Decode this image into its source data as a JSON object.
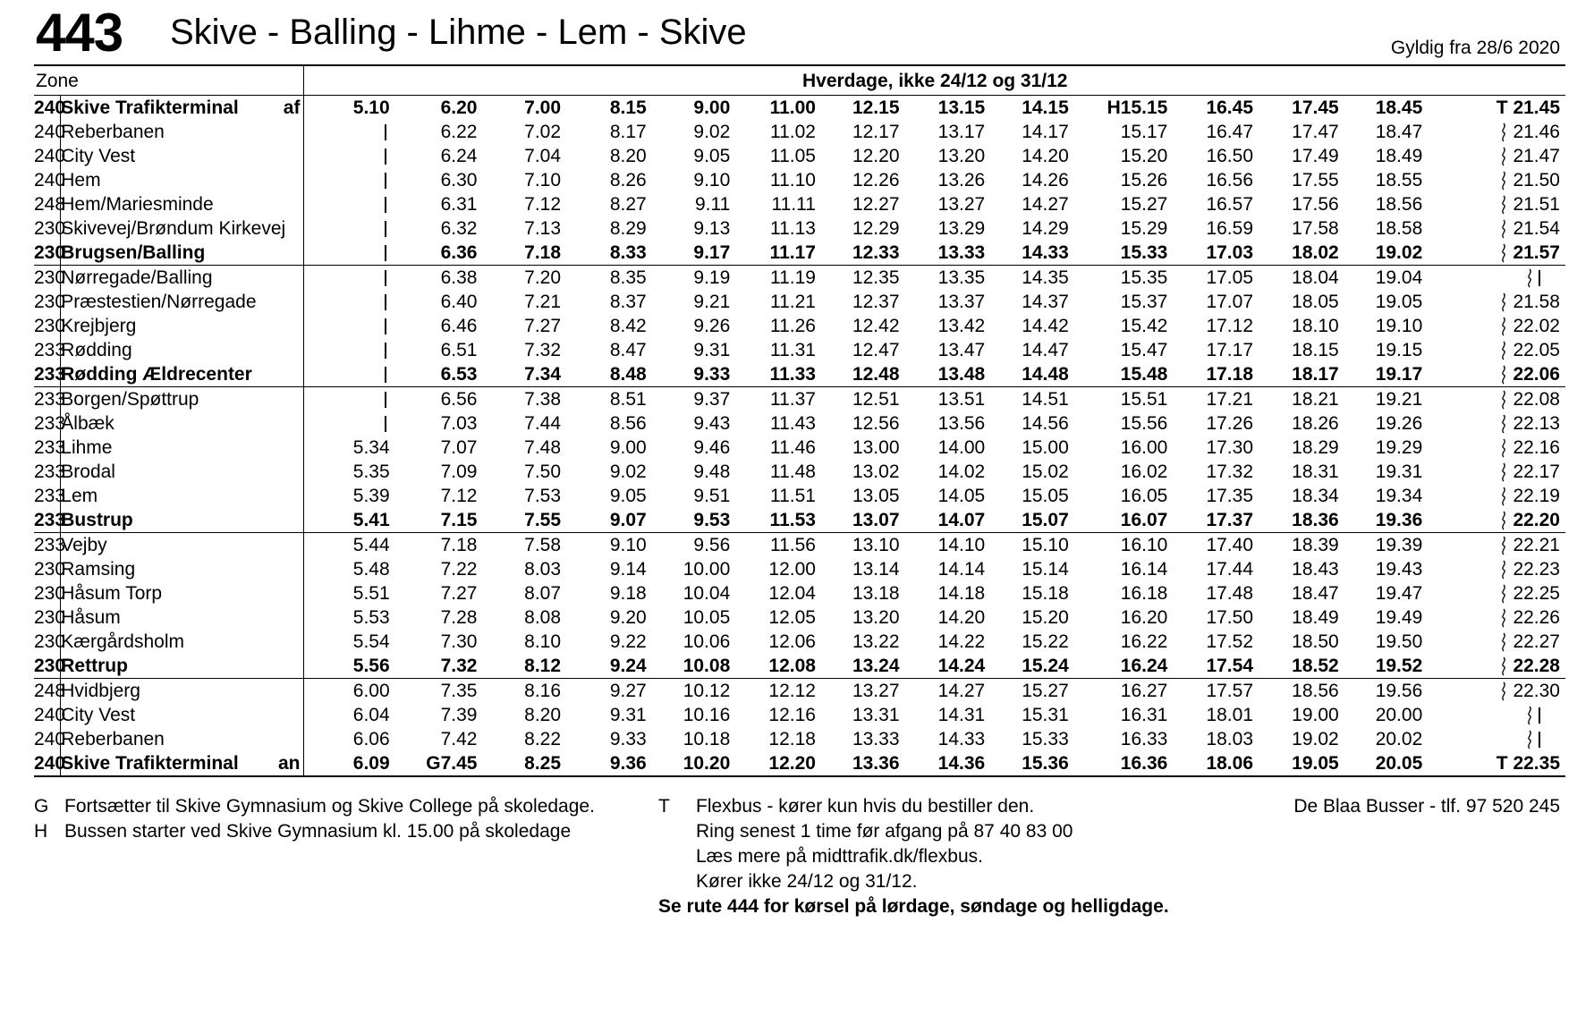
{
  "header": {
    "route_number": "443",
    "route_name": "Skive - Balling - Lihme - Lem - Skive",
    "valid_from": "Gyldig fra 28/6 2020"
  },
  "table": {
    "zone_header": "Zone",
    "day_header": "Hverdage, ikke 24/12 og 31/12",
    "rows": [
      {
        "zone": "240",
        "stop": "Skive Trafikterminal",
        "mark": "af",
        "bold": true,
        "sep": false,
        "times": [
          "5.10",
          "6.20",
          "7.00",
          "8.15",
          "9.00",
          "11.00",
          "12.15",
          "13.15",
          "14.15",
          "H15.15",
          "16.45",
          "17.45",
          "18.45",
          "T 21.45"
        ]
      },
      {
        "zone": "240",
        "stop": "Reberbanen",
        "mark": "",
        "bold": false,
        "sep": false,
        "times": [
          "|",
          "6.22",
          "7.02",
          "8.17",
          "9.02",
          "11.02",
          "12.17",
          "13.17",
          "14.17",
          "15.17",
          "16.47",
          "17.47",
          "18.47",
          "~21.46"
        ]
      },
      {
        "zone": "240",
        "stop": "City Vest",
        "mark": "",
        "bold": false,
        "sep": false,
        "times": [
          "|",
          "6.24",
          "7.04",
          "8.20",
          "9.05",
          "11.05",
          "12.20",
          "13.20",
          "14.20",
          "15.20",
          "16.50",
          "17.49",
          "18.49",
          "~21.47"
        ]
      },
      {
        "zone": "240",
        "stop": "Hem",
        "mark": "",
        "bold": false,
        "sep": false,
        "times": [
          "|",
          "6.30",
          "7.10",
          "8.26",
          "9.10",
          "11.10",
          "12.26",
          "13.26",
          "14.26",
          "15.26",
          "16.56",
          "17.55",
          "18.55",
          "~21.50"
        ]
      },
      {
        "zone": "248",
        "stop": "Hem/Mariesminde",
        "mark": "",
        "bold": false,
        "sep": false,
        "times": [
          "|",
          "6.31",
          "7.12",
          "8.27",
          "9.11",
          "11.11",
          "12.27",
          "13.27",
          "14.27",
          "15.27",
          "16.57",
          "17.56",
          "18.56",
          "~21.51"
        ]
      },
      {
        "zone": "230",
        "stop": "Skivevej/Brøndum Kirkevej",
        "mark": "",
        "bold": false,
        "sep": false,
        "times": [
          "|",
          "6.32",
          "7.13",
          "8.29",
          "9.13",
          "11.13",
          "12.29",
          "13.29",
          "14.29",
          "15.29",
          "16.59",
          "17.58",
          "18.58",
          "~21.54"
        ]
      },
      {
        "zone": "230",
        "stop": "Brugsen/Balling",
        "mark": "",
        "bold": true,
        "sep": true,
        "times": [
          "|",
          "6.36",
          "7.18",
          "8.33",
          "9.17",
          "11.17",
          "12.33",
          "13.33",
          "14.33",
          "15.33",
          "17.03",
          "18.02",
          "19.02",
          "~21.57"
        ]
      },
      {
        "zone": "230",
        "stop": "Nørregade/Balling",
        "mark": "",
        "bold": false,
        "sep": false,
        "times": [
          "|",
          "6.38",
          "7.20",
          "8.35",
          "9.19",
          "11.19",
          "12.35",
          "13.35",
          "14.35",
          "15.35",
          "17.05",
          "18.04",
          "19.04",
          "~|"
        ]
      },
      {
        "zone": "230",
        "stop": "Præstestien/Nørregade",
        "mark": "",
        "bold": false,
        "sep": false,
        "times": [
          "|",
          "6.40",
          "7.21",
          "8.37",
          "9.21",
          "11.21",
          "12.37",
          "13.37",
          "14.37",
          "15.37",
          "17.07",
          "18.05",
          "19.05",
          "~21.58"
        ]
      },
      {
        "zone": "230",
        "stop": "Krejbjerg",
        "mark": "",
        "bold": false,
        "sep": false,
        "times": [
          "|",
          "6.46",
          "7.27",
          "8.42",
          "9.26",
          "11.26",
          "12.42",
          "13.42",
          "14.42",
          "15.42",
          "17.12",
          "18.10",
          "19.10",
          "~22.02"
        ]
      },
      {
        "zone": "233",
        "stop": "Rødding",
        "mark": "",
        "bold": false,
        "sep": false,
        "times": [
          "|",
          "6.51",
          "7.32",
          "8.47",
          "9.31",
          "11.31",
          "12.47",
          "13.47",
          "14.47",
          "15.47",
          "17.17",
          "18.15",
          "19.15",
          "~22.05"
        ]
      },
      {
        "zone": "233",
        "stop": "Rødding Ældrecenter",
        "mark": "",
        "bold": true,
        "sep": true,
        "times": [
          "|",
          "6.53",
          "7.34",
          "8.48",
          "9.33",
          "11.33",
          "12.48",
          "13.48",
          "14.48",
          "15.48",
          "17.18",
          "18.17",
          "19.17",
          "~22.06"
        ]
      },
      {
        "zone": "233",
        "stop": "Borgen/Spøttrup",
        "mark": "",
        "bold": false,
        "sep": false,
        "times": [
          "|",
          "6.56",
          "7.38",
          "8.51",
          "9.37",
          "11.37",
          "12.51",
          "13.51",
          "14.51",
          "15.51",
          "17.21",
          "18.21",
          "19.21",
          "~22.08"
        ]
      },
      {
        "zone": "233",
        "stop": "Ålbæk",
        "mark": "",
        "bold": false,
        "sep": false,
        "times": [
          "|",
          "7.03",
          "7.44",
          "8.56",
          "9.43",
          "11.43",
          "12.56",
          "13.56",
          "14.56",
          "15.56",
          "17.26",
          "18.26",
          "19.26",
          "~22.13"
        ]
      },
      {
        "zone": "233",
        "stop": "Lihme",
        "mark": "",
        "bold": false,
        "sep": false,
        "times": [
          "5.34",
          "7.07",
          "7.48",
          "9.00",
          "9.46",
          "11.46",
          "13.00",
          "14.00",
          "15.00",
          "16.00",
          "17.30",
          "18.29",
          "19.29",
          "~22.16"
        ]
      },
      {
        "zone": "233",
        "stop": "Brodal",
        "mark": "",
        "bold": false,
        "sep": false,
        "times": [
          "5.35",
          "7.09",
          "7.50",
          "9.02",
          "9.48",
          "11.48",
          "13.02",
          "14.02",
          "15.02",
          "16.02",
          "17.32",
          "18.31",
          "19.31",
          "~22.17"
        ]
      },
      {
        "zone": "233",
        "stop": "Lem",
        "mark": "",
        "bold": false,
        "sep": false,
        "times": [
          "5.39",
          "7.12",
          "7.53",
          "9.05",
          "9.51",
          "11.51",
          "13.05",
          "14.05",
          "15.05",
          "16.05",
          "17.35",
          "18.34",
          "19.34",
          "~22.19"
        ]
      },
      {
        "zone": "233",
        "stop": "Bustrup",
        "mark": "",
        "bold": true,
        "sep": true,
        "times": [
          "5.41",
          "7.15",
          "7.55",
          "9.07",
          "9.53",
          "11.53",
          "13.07",
          "14.07",
          "15.07",
          "16.07",
          "17.37",
          "18.36",
          "19.36",
          "~22.20"
        ]
      },
      {
        "zone": "233",
        "stop": "Vejby",
        "mark": "",
        "bold": false,
        "sep": false,
        "times": [
          "5.44",
          "7.18",
          "7.58",
          "9.10",
          "9.56",
          "11.56",
          "13.10",
          "14.10",
          "15.10",
          "16.10",
          "17.40",
          "18.39",
          "19.39",
          "~22.21"
        ]
      },
      {
        "zone": "230",
        "stop": "Ramsing",
        "mark": "",
        "bold": false,
        "sep": false,
        "times": [
          "5.48",
          "7.22",
          "8.03",
          "9.14",
          "10.00",
          "12.00",
          "13.14",
          "14.14",
          "15.14",
          "16.14",
          "17.44",
          "18.43",
          "19.43",
          "~22.23"
        ]
      },
      {
        "zone": "230",
        "stop": "Håsum Torp",
        "mark": "",
        "bold": false,
        "sep": false,
        "times": [
          "5.51",
          "7.27",
          "8.07",
          "9.18",
          "10.04",
          "12.04",
          "13.18",
          "14.18",
          "15.18",
          "16.18",
          "17.48",
          "18.47",
          "19.47",
          "~22.25"
        ]
      },
      {
        "zone": "230",
        "stop": "Håsum",
        "mark": "",
        "bold": false,
        "sep": false,
        "times": [
          "5.53",
          "7.28",
          "8.08",
          "9.20",
          "10.05",
          "12.05",
          "13.20",
          "14.20",
          "15.20",
          "16.20",
          "17.50",
          "18.49",
          "19.49",
          "~22.26"
        ]
      },
      {
        "zone": "230",
        "stop": "Kærgårdsholm",
        "mark": "",
        "bold": false,
        "sep": false,
        "times": [
          "5.54",
          "7.30",
          "8.10",
          "9.22",
          "10.06",
          "12.06",
          "13.22",
          "14.22",
          "15.22",
          "16.22",
          "17.52",
          "18.50",
          "19.50",
          "~22.27"
        ]
      },
      {
        "zone": "230",
        "stop": "Rettrup",
        "mark": "",
        "bold": true,
        "sep": true,
        "times": [
          "5.56",
          "7.32",
          "8.12",
          "9.24",
          "10.08",
          "12.08",
          "13.24",
          "14.24",
          "15.24",
          "16.24",
          "17.54",
          "18.52",
          "19.52",
          "~22.28"
        ]
      },
      {
        "zone": "248",
        "stop": "Hvidbjerg",
        "mark": "",
        "bold": false,
        "sep": false,
        "times": [
          "6.00",
          "7.35",
          "8.16",
          "9.27",
          "10.12",
          "12.12",
          "13.27",
          "14.27",
          "15.27",
          "16.27",
          "17.57",
          "18.56",
          "19.56",
          "~22.30"
        ]
      },
      {
        "zone": "240",
        "stop": "City Vest",
        "mark": "",
        "bold": false,
        "sep": false,
        "times": [
          "6.04",
          "7.39",
          "8.20",
          "9.31",
          "10.16",
          "12.16",
          "13.31",
          "14.31",
          "15.31",
          "16.31",
          "18.01",
          "19.00",
          "20.00",
          "~|"
        ]
      },
      {
        "zone": "240",
        "stop": "Reberbanen",
        "mark": "",
        "bold": false,
        "sep": false,
        "times": [
          "6.06",
          "7.42",
          "8.22",
          "9.33",
          "10.18",
          "12.18",
          "13.33",
          "14.33",
          "15.33",
          "16.33",
          "18.03",
          "19.02",
          "20.02",
          "~|"
        ]
      },
      {
        "zone": "240",
        "stop": "Skive Trafikterminal",
        "mark": "an",
        "bold": true,
        "sep": false,
        "last": true,
        "times": [
          "6.09",
          "G7.45",
          "8.25",
          "9.36",
          "10.20",
          "12.20",
          "13.36",
          "14.36",
          "15.36",
          "16.36",
          "18.06",
          "19.05",
          "20.05",
          "T 22.35"
        ]
      }
    ]
  },
  "footnotes": {
    "g_key": "G",
    "g_text": "Fortsætter til Skive Gymnasium og Skive College på skoledage.",
    "h_key": "H",
    "h_text": "Bussen starter ved Skive Gymnasium kl. 15.00 på skoledage",
    "t_key": "T",
    "t_line1": "Flexbus - kører kun hvis du bestiller den.",
    "t_line2": "Ring senest 1 time før afgang på 87 40 83 00",
    "t_line3": "Læs mere på midttrafik.dk/flexbus.",
    "t_line4": "Kører ikke 24/12 og 31/12.",
    "operator": "De Blaa Busser - tlf. 97 520 245",
    "weekend_note": "Se rute 444 for kørsel på lørdage, søndage og helligdage."
  }
}
